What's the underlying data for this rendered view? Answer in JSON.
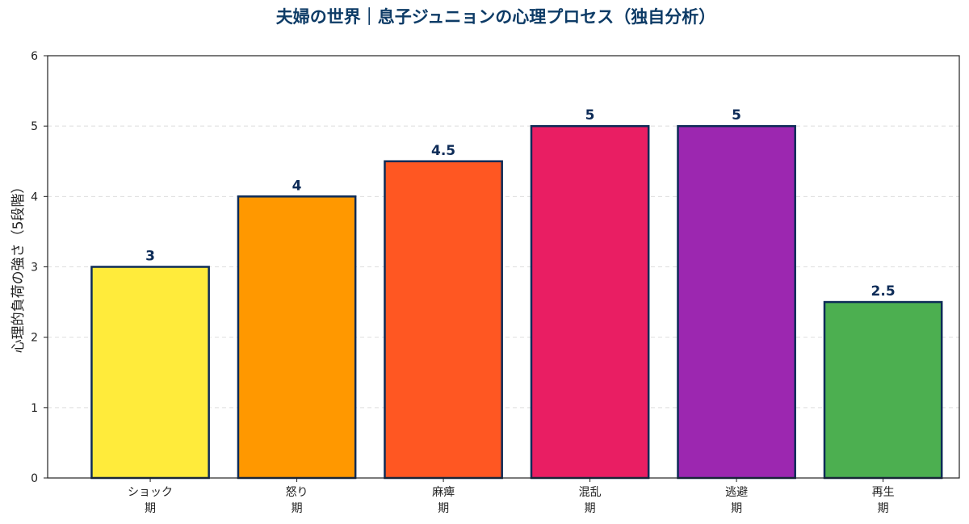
{
  "chart_data": {
    "type": "bar",
    "title": "夫婦の世界｜息子ジュニョンの心理プロセス（独自分析）",
    "xlabel": "",
    "ylabel": "心理的負荷の強さ（5段階）",
    "ylim": [
      0,
      6
    ],
    "yticks": [
      0,
      1,
      2,
      3,
      4,
      5,
      6
    ],
    "grid": true,
    "categories": [
      [
        "ショック",
        "期"
      ],
      [
        "怒り",
        "期"
      ],
      [
        "麻痺",
        "期"
      ],
      [
        "混乱",
        "期"
      ],
      [
        "逃避",
        "期"
      ],
      [
        "再生",
        "期"
      ]
    ],
    "values": [
      3,
      4,
      4.5,
      5,
      5,
      2.5
    ],
    "value_labels": [
      "3",
      "4",
      "4.5",
      "5",
      "5",
      "2.5"
    ],
    "colors": [
      "#ffeb3b",
      "#ff9800",
      "#ff5722",
      "#e91e63",
      "#9c27b0",
      "#4caf50"
    ],
    "edge_color": "#0d2b57",
    "title_color": "#0d3b66",
    "label_color": "#0d2b57"
  }
}
